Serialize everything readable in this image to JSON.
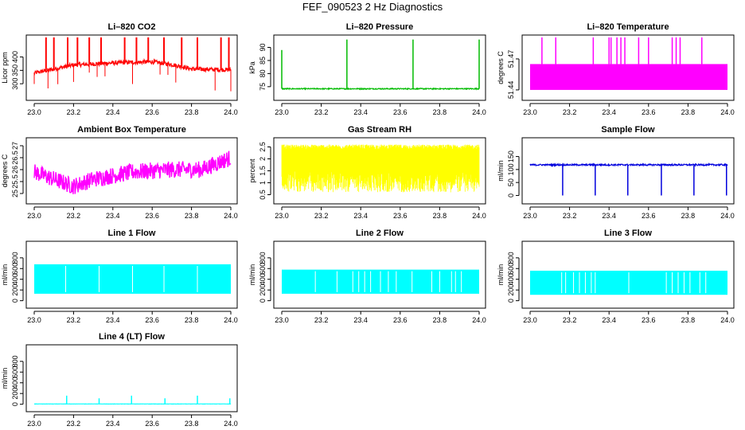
{
  "page_title": "FEF_090523  2 Hz Diagnostics",
  "chart_data": [
    {
      "id": "co2",
      "type": "line",
      "title": "Li–820 CO2",
      "ylabel": "Licor ppm",
      "color": "#ff0000",
      "xlim": [
        23.0,
        24.0
      ],
      "ylim": [
        250,
        470
      ],
      "xticks": [
        23.0,
        23.2,
        23.4,
        23.6,
        23.8,
        24.0
      ],
      "yticks": [
        300,
        350,
        400
      ],
      "series": [
        {
          "name": "CO2",
          "pattern": "co2",
          "base": [
            [
              23.0,
              340
            ],
            [
              23.2,
              370
            ],
            [
              23.4,
              378
            ],
            [
              23.6,
              382
            ],
            [
              23.7,
              372
            ],
            [
              23.8,
              355
            ],
            [
              24.0,
              352
            ]
          ],
          "noise": 8,
          "spikes_up": [
            23.06,
            23.1,
            23.17,
            23.22,
            23.28,
            23.34,
            23.46,
            23.52,
            23.58,
            23.66,
            23.75,
            23.83,
            23.95,
            23.99
          ],
          "spikes_down": [
            23.0,
            23.07,
            23.12,
            23.2,
            23.28,
            23.32,
            23.36,
            23.5,
            23.64,
            23.68,
            23.72,
            23.92,
            24.0
          ]
        }
      ]
    },
    {
      "id": "pressure",
      "type": "line",
      "title": "Li–820 Pressure",
      "ylabel": "kPa",
      "color": "#00bb00",
      "xlim": [
        23.0,
        24.0
      ],
      "ylim": [
        71,
        93.5
      ],
      "xticks": [
        23.0,
        23.2,
        23.4,
        23.6,
        23.8,
        24.0
      ],
      "yticks": [
        75,
        80,
        85,
        90
      ],
      "series": [
        {
          "name": "Pressure",
          "pattern": "flat",
          "level": 74.2,
          "noise": 0.2,
          "spikes_up": [
            [
              23.0,
              89
            ],
            [
              23.33,
              93
            ],
            [
              23.665,
              93
            ],
            [
              24.0,
              93
            ]
          ]
        }
      ]
    },
    {
      "id": "licor_temp",
      "type": "line",
      "title": "Li–820 Temperature",
      "ylabel": "degrees C",
      "color": "#ff00ff",
      "xlim": [
        23.0,
        24.0
      ],
      "ylim": [
        51.433,
        51.49
      ],
      "xticks": [
        23.0,
        23.2,
        23.4,
        23.6,
        23.8,
        24.0
      ],
      "yticks": [
        51.44,
        51.47
      ],
      "series": [
        {
          "name": "Temperature",
          "pattern": "band",
          "low": 51.44,
          "high": 51.465,
          "spikes_up": [
            23.06,
            23.13,
            23.32,
            23.4,
            23.41,
            23.44,
            23.46,
            23.48,
            23.55,
            23.6,
            23.72,
            23.74,
            23.76,
            23.87
          ]
        }
      ]
    },
    {
      "id": "box_temp",
      "type": "line",
      "title": "Ambient Box Temperature",
      "ylabel": "degrees C",
      "color": "#ff00ff",
      "xlim": [
        23.0,
        24.0
      ],
      "ylim": [
        24.7,
        27.2
      ],
      "xticks": [
        23.0,
        23.2,
        23.4,
        23.6,
        23.8,
        24.0
      ],
      "yticks": [
        25.0,
        25.5,
        26.0,
        26.5,
        27.0
      ],
      "series": [
        {
          "name": "Box Temp",
          "pattern": "noisy",
          "base": [
            [
              23.0,
              25.9
            ],
            [
              23.1,
              25.6
            ],
            [
              23.2,
              25.3
            ],
            [
              23.3,
              25.6
            ],
            [
              23.5,
              25.9
            ],
            [
              23.7,
              26.0
            ],
            [
              23.85,
              26.0
            ],
            [
              24.0,
              26.5
            ]
          ],
          "noise": 0.35
        }
      ]
    },
    {
      "id": "rh",
      "type": "line",
      "title": "Gas Stream RH",
      "ylabel": "percent",
      "color": "#ffff00",
      "xlim": [
        23.0,
        24.0
      ],
      "ylim": [
        0.25,
        2.75
      ],
      "xticks": [
        23.0,
        23.2,
        23.4,
        23.6,
        23.8,
        24.0
      ],
      "yticks": [
        0.5,
        1.0,
        1.5,
        2.0,
        2.5
      ],
      "series": [
        {
          "name": "RH",
          "pattern": "dense",
          "low": 0.6,
          "high": 2.6,
          "fill_low": 1.5,
          "fill_high": 2.4
        }
      ]
    },
    {
      "id": "sample_flow",
      "type": "line",
      "title": "Sample Flow",
      "ylabel": "ml/min",
      "color": "#0000dd",
      "xlim": [
        23.0,
        24.0
      ],
      "ylim": [
        -20,
        210
      ],
      "xticks": [
        23.0,
        23.2,
        23.4,
        23.6,
        23.8,
        24.0
      ],
      "yticks": [
        0,
        50,
        100,
        150
      ],
      "series": [
        {
          "name": "Sample Flow",
          "pattern": "flat",
          "level": 118,
          "noise": 3,
          "spikes_down": [
            [
              23.165,
              0
            ],
            [
              23.33,
              0
            ],
            [
              23.495,
              0
            ],
            [
              23.665,
              0
            ],
            [
              23.83,
              0
            ],
            [
              23.995,
              0
            ]
          ]
        }
      ]
    },
    {
      "id": "line1",
      "type": "line",
      "title": "Line 1 Flow",
      "ylabel": "ml/min",
      "color": "#00ffff",
      "xlim": [
        23.0,
        24.0
      ],
      "ylim": [
        -80,
        1050
      ],
      "xticks": [
        23.0,
        23.2,
        23.4,
        23.6,
        23.8,
        24.0
      ],
      "yticks": [
        0,
        200,
        400,
        600,
        800
      ],
      "series": [
        {
          "name": "Line 1",
          "pattern": "square",
          "low": 130,
          "high": 680,
          "gaps": [
            23.16,
            23.33,
            23.5,
            23.66,
            23.83
          ]
        }
      ]
    },
    {
      "id": "line2",
      "type": "line",
      "title": "Line 2 Flow",
      "ylabel": "ml/min",
      "color": "#00ffff",
      "xlim": [
        23.0,
        24.0
      ],
      "ylim": [
        -80,
        1050
      ],
      "xticks": [
        23.0,
        23.2,
        23.4,
        23.6,
        23.8,
        24.0
      ],
      "yticks": [
        0,
        200,
        400,
        600,
        800
      ],
      "series": [
        {
          "name": "Line 2",
          "pattern": "square",
          "low": 130,
          "high": 580,
          "gaps": [
            23.17,
            23.28,
            23.36,
            23.39,
            23.42,
            23.45,
            23.5,
            23.54,
            23.58,
            23.66,
            23.76,
            23.8,
            23.86,
            23.88,
            23.91
          ]
        }
      ]
    },
    {
      "id": "line3",
      "type": "line",
      "title": "Line 3 Flow",
      "ylabel": "ml/min",
      "color": "#00ffff",
      "xlim": [
        23.0,
        24.0
      ],
      "ylim": [
        -80,
        1050
      ],
      "xticks": [
        23.0,
        23.2,
        23.4,
        23.6,
        23.8,
        24.0
      ],
      "yticks": [
        0,
        200,
        400,
        600,
        800
      ],
      "series": [
        {
          "name": "Line 3",
          "pattern": "square",
          "low": 110,
          "high": 560,
          "gaps": [
            23.16,
            23.18,
            23.22,
            23.25,
            23.28,
            23.31,
            23.33,
            23.5,
            23.69,
            23.72,
            23.75,
            23.78,
            23.81,
            23.86,
            23.89
          ]
        }
      ]
    },
    {
      "id": "line4",
      "type": "line",
      "title": "Line 4 (LT) Flow",
      "ylabel": "ml/min",
      "color": "#00ffff",
      "xlim": [
        23.0,
        24.0
      ],
      "ylim": [
        -80,
        1050
      ],
      "xticks": [
        23.0,
        23.2,
        23.4,
        23.6,
        23.8,
        24.0
      ],
      "yticks": [
        0,
        200,
        400,
        600,
        800
      ],
      "series": [
        {
          "name": "Line 4",
          "pattern": "flat",
          "level": 5,
          "noise": 2,
          "spikes_up": [
            [
              23.165,
              160
            ],
            [
              23.33,
              110
            ],
            [
              23.495,
              160
            ],
            [
              23.665,
              110
            ],
            [
              23.83,
              160
            ],
            [
              23.995,
              110
            ]
          ]
        }
      ]
    }
  ]
}
